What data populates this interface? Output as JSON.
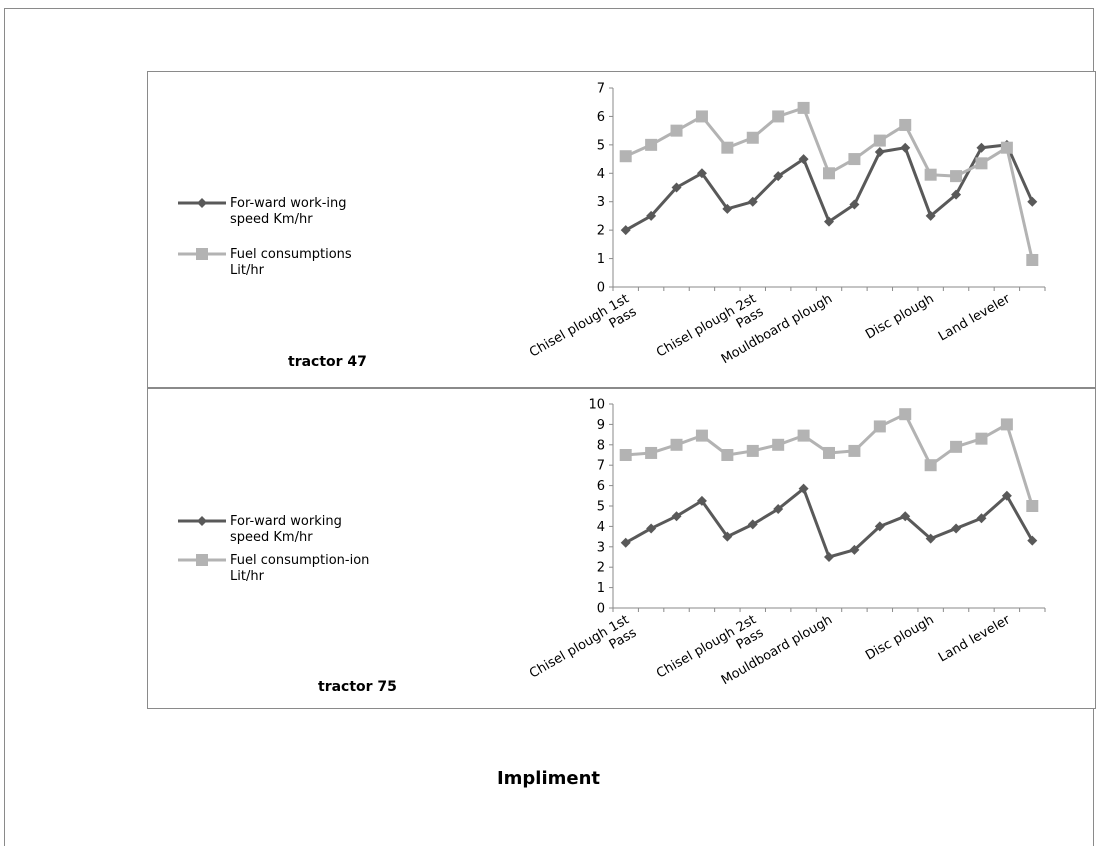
{
  "colors": {
    "speed": "#595959",
    "fuel": "#b3b3b3",
    "axis": "#8a8a8a"
  },
  "footer_label": "Impliment",
  "chart_data": [
    {
      "type": "line",
      "panel_label": "tractor 47",
      "ylim": [
        0,
        7
      ],
      "y_ticks": [
        0,
        1,
        2,
        3,
        4,
        5,
        6,
        7
      ],
      "category_labels": [
        "Chisel plough 1st Pass",
        "Chisel plough 2st Pass",
        "Mouldboard plough",
        "Disc plough",
        "Land leveler"
      ],
      "legend_placement": "left",
      "series": [
        {
          "name": "For-ward work-ing speed Km/hr",
          "legend_lines": [
            "For-ward work-ing",
            "speed Km/hr"
          ],
          "marker": "diamond",
          "values": [
            2.0,
            2.5,
            3.5,
            4.0,
            2.75,
            3.0,
            3.9,
            4.5,
            2.3,
            2.9,
            4.75,
            4.9,
            2.5,
            3.25,
            4.9,
            5.0,
            3.0
          ]
        },
        {
          "name": "Fuel consumptions Lit/hr",
          "legend_lines": [
            "Fuel consumptions",
            "Lit/hr"
          ],
          "marker": "square",
          "values": [
            4.6,
            5.0,
            5.5,
            6.0,
            4.9,
            5.25,
            6.0,
            6.3,
            4.0,
            4.5,
            5.15,
            5.7,
            3.95,
            3.9,
            4.35,
            4.9,
            0.95
          ]
        }
      ]
    },
    {
      "type": "line",
      "panel_label": "tractor 75",
      "ylim": [
        0,
        10
      ],
      "y_ticks": [
        0,
        1,
        2,
        3,
        4,
        5,
        6,
        7,
        8,
        9,
        10
      ],
      "category_labels": [
        "Chisel plough 1st Pass",
        "Chisel plough 2st Pass",
        "Mouldboard plough",
        "Disc plough",
        "Land leveler"
      ],
      "legend_placement": "left",
      "series": [
        {
          "name": "For-ward working speed Km/hr",
          "legend_lines": [
            "For-ward working",
            "speed Km/hr"
          ],
          "marker": "diamond",
          "values": [
            3.2,
            3.9,
            4.5,
            5.25,
            3.5,
            4.1,
            4.85,
            5.85,
            2.5,
            2.85,
            4.0,
            4.5,
            3.4,
            3.9,
            4.4,
            5.5,
            3.3
          ]
        },
        {
          "name": "Fuel consumption-ion Lit/hr",
          "legend_lines": [
            "Fuel consumption-ion",
            "Lit/hr"
          ],
          "marker": "square",
          "values": [
            7.5,
            7.6,
            8.0,
            8.45,
            7.5,
            7.7,
            8.0,
            8.45,
            7.6,
            7.7,
            8.9,
            9.5,
            7.0,
            7.9,
            8.3,
            9.0,
            5.0
          ]
        }
      ]
    }
  ]
}
